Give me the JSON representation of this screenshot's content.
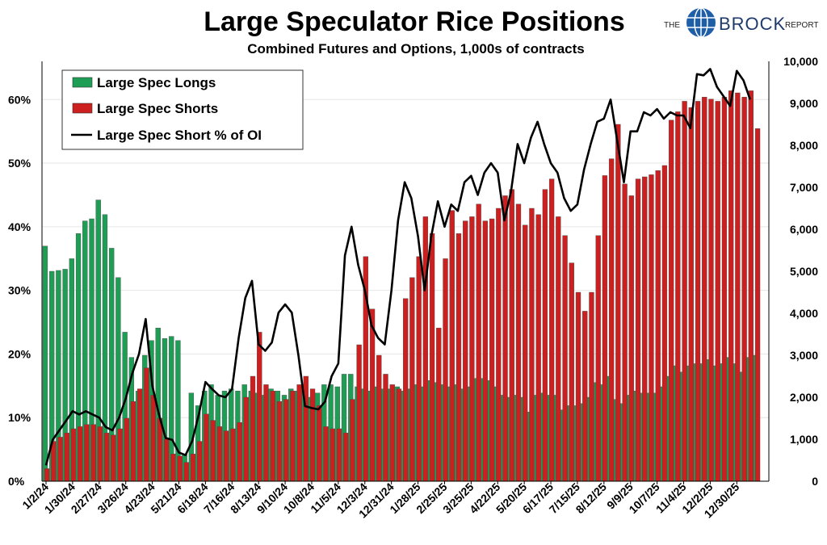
{
  "chart_data": {
    "type": "bar",
    "title": "Large Speculator Rice Positions",
    "subtitle": "Combined Futures and Options, 1,000s of contracts",
    "left_axis": {
      "ticks": [
        "0%",
        "10%",
        "20%",
        "30%",
        "40%",
        "50%",
        "60%"
      ],
      "range": [
        0,
        66
      ]
    },
    "right_axis": {
      "ticks": [
        "0",
        "1,000",
        "2,000",
        "3,000",
        "4,000",
        "5,000",
        "6,000",
        "7,000",
        "8,000",
        "9,000",
        "10,000"
      ],
      "range": [
        0,
        10000
      ]
    },
    "x_tick_labels": [
      "1/2/24",
      "1/30/24",
      "2/27/24",
      "3/26/24",
      "4/23/24",
      "5/21/24",
      "6/18/24",
      "7/16/24",
      "8/13/24",
      "9/10/24",
      "10/8/24",
      "11/5/24",
      "12/3/24",
      "12/31/24",
      "1/28/25",
      "2/25/25",
      "3/25/25",
      "4/22/25",
      "5/20/25",
      "6/17/25",
      "7/15/25",
      "8/12/25",
      "9/9/25",
      "10/7/25",
      "11/4/25",
      "12/2/25",
      "12/30/25"
    ],
    "legend": {
      "position": "top-left"
    },
    "series": [
      {
        "name": "Large Spec Longs",
        "type": "bar",
        "axis": "right",
        "color": "#1e9e55",
        "values": [
          5600,
          5000,
          5020,
          5050,
          5300,
          5900,
          6200,
          6250,
          6700,
          6350,
          5550,
          4850,
          3550,
          2950,
          2150,
          3000,
          3350,
          3650,
          3400,
          3450,
          3350,
          650,
          2100,
          1800,
          2150,
          2300,
          2050,
          2150,
          2200,
          2150,
          2300,
          2150,
          2100,
          2050,
          2200,
          2150,
          2050,
          2200,
          2150,
          2300,
          2000,
          2100,
          2300,
          2300,
          2250,
          2550,
          2550,
          2250,
          2200,
          2150,
          2250,
          2200,
          2200,
          2250,
          2150,
          2200,
          2300,
          2250,
          2400,
          2350,
          2300,
          2250,
          2300,
          2200,
          2250,
          2450,
          2450,
          2400,
          2250,
          2050,
          2000,
          2050,
          2000,
          1650,
          2050,
          2100,
          2050,
          2050,
          1700,
          1800,
          1800,
          1850,
          2000,
          2350,
          2300,
          2500,
          1950,
          1850,
          2050,
          2150,
          2100,
          2100,
          2100,
          2250,
          2500,
          2750,
          2600,
          2750,
          2800,
          2800,
          2900,
          2750,
          2800,
          2950,
          2800,
          2600,
          2950,
          3000
        ]
      },
      {
        "name": "Large Spec Shorts",
        "type": "bar",
        "axis": "right",
        "color": "#cc1f1f",
        "values": [
          300,
          950,
          1050,
          1150,
          1250,
          1300,
          1350,
          1350,
          1300,
          1150,
          1100,
          1250,
          1500,
          1900,
          2200,
          2700,
          2050,
          1500,
          1000,
          650,
          600,
          450,
          650,
          950,
          1600,
          1450,
          1300,
          1200,
          1250,
          1400,
          2000,
          2500,
          3550,
          2300,
          2150,
          1900,
          1950,
          2150,
          2300,
          2500,
          2200,
          1800,
          1300,
          1250,
          1250,
          1150,
          1950,
          3250,
          5350,
          4100,
          3000,
          2550,
          2300,
          2200,
          4350,
          4850,
          5350,
          6300,
          5900,
          3650,
          5300,
          6450,
          5900,
          6200,
          6300,
          6600,
          6200,
          6250,
          6500,
          6800,
          6950,
          6600,
          6100,
          6500,
          6350,
          6950,
          7200,
          6300,
          5850,
          5200,
          4500,
          4050,
          4500,
          5850,
          7280,
          7680,
          8500,
          7080,
          6800,
          7200,
          7250,
          7300,
          7400,
          7520,
          8600,
          8800,
          9050,
          8900,
          9050,
          9150,
          9100,
          9050,
          9150,
          9300,
          9250,
          9150,
          9300,
          8400
        ]
      },
      {
        "name": "Large Spec Short % of OI",
        "type": "line",
        "axis": "left",
        "color": "#000000",
        "values": [
          2.5,
          6.5,
          8,
          9.5,
          11,
          10.5,
          11,
          10.5,
          10,
          8.5,
          8,
          10,
          13,
          17,
          20,
          25.5,
          15,
          10.5,
          6.8,
          6.5,
          4.5,
          4.1,
          6.3,
          10.5,
          15.6,
          14.5,
          13.5,
          13.2,
          14.5,
          22.5,
          28.8,
          31.5,
          21.5,
          20.5,
          21.8,
          26.5,
          27.8,
          26.5,
          19.8,
          11.8,
          11.5,
          11.3,
          12.5,
          16.5,
          18.5,
          35.5,
          40,
          34,
          30,
          24.5,
          22.5,
          21.5,
          30,
          41,
          47,
          44.5,
          38.5,
          30,
          38.5,
          44,
          40,
          43.5,
          42.5,
          47,
          48,
          45,
          48.5,
          50,
          48.5,
          41,
          45.5,
          53,
          50,
          54,
          56.5,
          53,
          50,
          48.5,
          44.5,
          42.5,
          43.5,
          49,
          53,
          56.5,
          57,
          60,
          53.5,
          47,
          55,
          55,
          58,
          57.5,
          58.5,
          57,
          58,
          57.5,
          57.5,
          55.5,
          64,
          63.8,
          64.8,
          62,
          60.5,
          59,
          64.5,
          63,
          60
        ]
      }
    ]
  },
  "brand": {
    "prefix": "THE",
    "name": "BROCK",
    "suffix": "REPORT"
  }
}
